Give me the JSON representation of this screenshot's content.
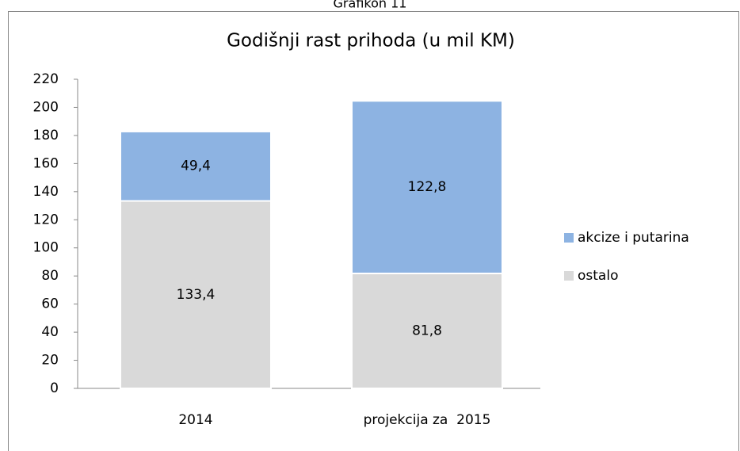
{
  "chart_data": {
    "type": "stacked_bar",
    "caption": "Grafikon 11",
    "title": "Godišnji rast prihoda (u mil KM)",
    "categories": [
      "2014",
      "projekcija za  2015"
    ],
    "series": [
      {
        "name": "akcize i putarina",
        "color": "#8db3e2",
        "values": [
          49.4,
          122.8
        ],
        "value_labels": [
          "49,4",
          "122,8"
        ]
      },
      {
        "name": "ostalo",
        "color": "#d9d9d9",
        "values": [
          133.4,
          81.8
        ],
        "value_labels": [
          "133,4",
          "81,8"
        ]
      }
    ],
    "ylim": [
      0,
      220
    ],
    "yticks": [
      0,
      20,
      40,
      60,
      80,
      100,
      120,
      140,
      160,
      180,
      200,
      220
    ],
    "grid": false,
    "legend": "right"
  }
}
